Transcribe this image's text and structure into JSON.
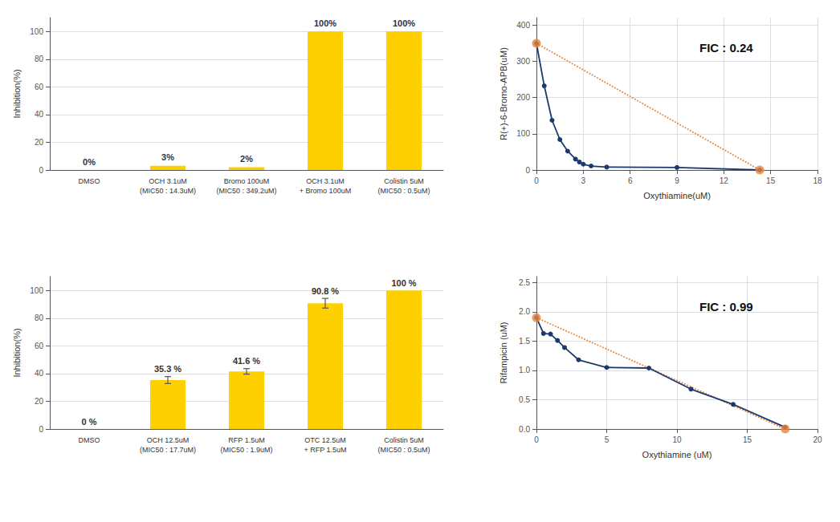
{
  "chart_data": [
    {
      "type": "bar",
      "categories": [
        "DMSO",
        "OCH 3.1uM\n(MIC50 : 14.3uM)",
        "Bromo 100uM\n(MIC50 : 349.2uM)",
        "OCH 3.1uM\n+ Bromo 100uM",
        "Colistin 5uM\n(MIC50 : 0.5uM)"
      ],
      "values": [
        0,
        3,
        2,
        100,
        100
      ],
      "value_labels": [
        "0%",
        "3%",
        "2%",
        "100%",
        "100%"
      ],
      "data_labels": true,
      "color": "#FFD000",
      "ylabel": "Inhibition(%)",
      "ylim": [
        0,
        110
      ],
      "yticks": [
        0,
        20,
        40,
        60,
        80,
        100
      ],
      "grid": "y"
    },
    {
      "type": "line",
      "xlabel": "Oxythiamine(uM)",
      "ylabel": "R(+)-6-Bromo-APB(uM)",
      "xlim": [
        0,
        18
      ],
      "ylim": [
        0,
        420
      ],
      "xticks": [
        0,
        3,
        6,
        9,
        12,
        15,
        18
      ],
      "yticks": [
        0,
        100,
        200,
        300,
        400
      ],
      "grid": true,
      "annotation": "FIC : 0.24",
      "series": [
        {
          "type": "line",
          "line_style": "dotted",
          "color": "#E8843A",
          "x": [
            0,
            14.3
          ],
          "values": [
            349.2,
            0
          ]
        },
        {
          "type": "line",
          "line_style": "solid",
          "marker": "circle",
          "color": "#1B3A6B",
          "x": [
            0,
            0.5,
            1.0,
            1.5,
            2.0,
            2.5,
            2.75,
            3.0,
            3.5,
            4.5,
            9.0,
            14.3
          ],
          "values": [
            349.2,
            232.0,
            137.0,
            84.0,
            52.0,
            30.0,
            22.0,
            16.0,
            11.0,
            8.0,
            7.0,
            0
          ]
        },
        {
          "type": "scatter",
          "marker": "circle",
          "color": "#E8843A",
          "x": [
            0,
            14.3
          ],
          "values": [
            349.2,
            0
          ]
        }
      ]
    },
    {
      "type": "bar",
      "categories": [
        "DMSO",
        "OCH 12.5uM\n(MIC50 : 17.7uM)",
        "RFP 1.5uM\n(MIC50 : 1.9uM)",
        "OTC 12.5uM\n+ RFP 1.5uM",
        "Colistin 5uM\n(MIC50 : 0.5uM)"
      ],
      "values": [
        0,
        35.3,
        41.6,
        90.8,
        100
      ],
      "errors": [
        0,
        2.5,
        2.0,
        3.5,
        0
      ],
      "value_labels": [
        "0 %",
        "35.3 %",
        "41.6 %",
        "90.8 %",
        "100 %"
      ],
      "data_labels": true,
      "color": "#FFD000",
      "ylabel": "Inhibition(%)",
      "ylim": [
        0,
        110
      ],
      "yticks": [
        0,
        20,
        40,
        60,
        80,
        100
      ],
      "grid": "y"
    },
    {
      "type": "line",
      "xlabel": "Oxythiamine (uM)",
      "ylabel": "Rifampicin (uM)",
      "xlim": [
        0,
        20
      ],
      "ylim": [
        0,
        2.6
      ],
      "xticks": [
        0,
        5,
        10,
        15,
        20
      ],
      "yticks": [
        {
          "value": 0.0,
          "label": "0.0"
        },
        0.5,
        {
          "value": 1.0,
          "label": "1.0"
        },
        1.5,
        {
          "value": 2.0,
          "label": "2.0"
        },
        2.5
      ],
      "grid": true,
      "annotation": "FIC : 0.99",
      "series": [
        {
          "type": "line",
          "line_style": "dotted",
          "color": "#E8843A",
          "x": [
            0,
            17.7
          ],
          "values": [
            1.9,
            0
          ]
        },
        {
          "type": "line",
          "line_style": "solid",
          "marker": "circle",
          "color": "#1B3A6B",
          "x": [
            0,
            0.5,
            1.0,
            1.5,
            2.0,
            3.0,
            5.0,
            8.0,
            11.0,
            14.0,
            17.7
          ],
          "values": [
            1.9,
            1.63,
            1.62,
            1.51,
            1.39,
            1.18,
            1.05,
            1.04,
            0.68,
            0.42,
            0.03
          ]
        },
        {
          "type": "scatter",
          "marker": "circle",
          "color": "#E8843A",
          "x": [
            0,
            17.7
          ],
          "values": [
            1.9,
            0
          ]
        }
      ]
    }
  ]
}
